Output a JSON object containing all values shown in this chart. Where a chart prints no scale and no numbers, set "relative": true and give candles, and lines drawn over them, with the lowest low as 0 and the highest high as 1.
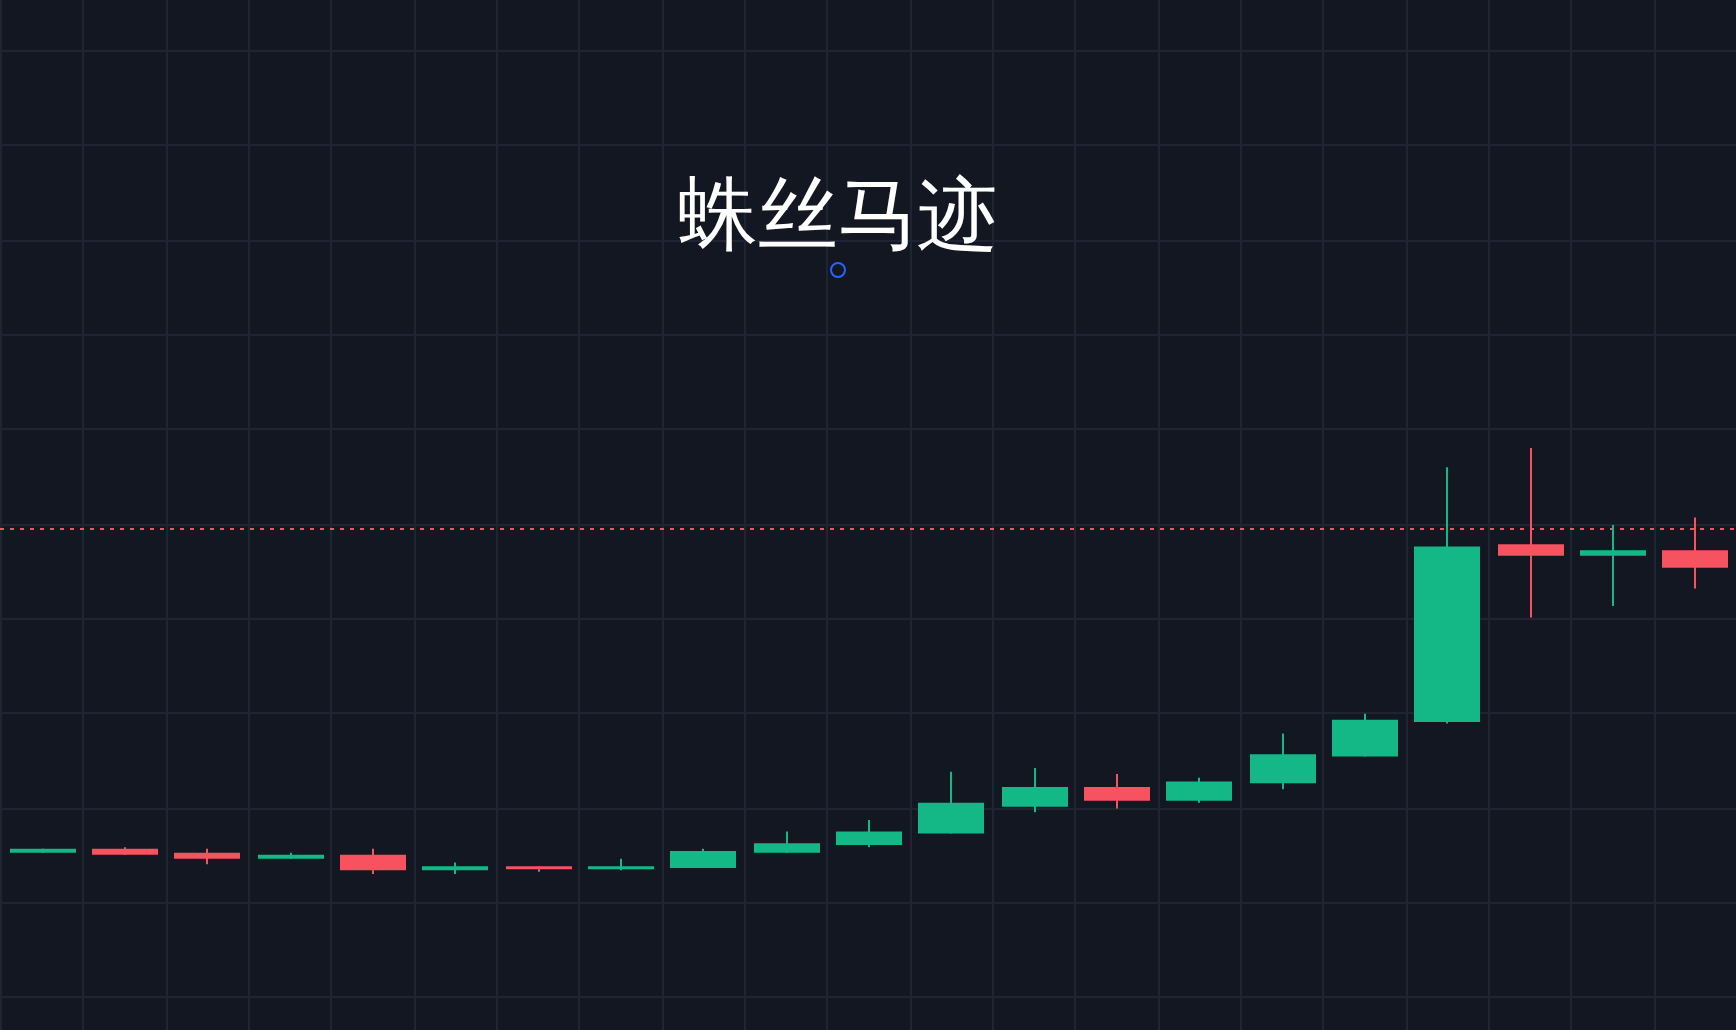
{
  "chart_data": {
    "type": "candlestick",
    "title": "蛛丝马迹",
    "relative": true,
    "grid": true,
    "legend": false,
    "tick_labels": false,
    "categories": [
      null,
      null,
      null,
      null,
      null,
      null,
      null,
      null,
      null,
      null,
      null,
      null,
      null,
      null,
      null,
      null,
      null,
      null,
      null,
      null,
      null
    ],
    "ohlc": [
      [
        0.05,
        0.059,
        0.05,
        0.059
      ],
      [
        0.059,
        0.063,
        0.045,
        0.045
      ],
      [
        0.05,
        0.059,
        0.023,
        0.036
      ],
      [
        0.036,
        0.05,
        0.036,
        0.045
      ],
      [
        0.045,
        0.059,
        0,
        0.009
      ],
      [
        0.009,
        0.027,
        0,
        0.018
      ],
      [
        0.018,
        0.018,
        0.005,
        0.014
      ],
      [
        0.014,
        0.036,
        0.009,
        0.018
      ],
      [
        0.014,
        0.059,
        0.014,
        0.054
      ],
      [
        0.05,
        0.1,
        0.05,
        0.072
      ],
      [
        0.068,
        0.127,
        0.063,
        0.1
      ],
      [
        0.095,
        0.24,
        0.095,
        0.167
      ],
      [
        0.158,
        0.249,
        0.145,
        0.204
      ],
      [
        0.204,
        0.235,
        0.154,
        0.172
      ],
      [
        0.172,
        0.226,
        0.167,
        0.217
      ],
      [
        0.213,
        0.33,
        0.199,
        0.281
      ],
      [
        0.276,
        0.376,
        0.276,
        0.362
      ],
      [
        0.357,
        0.955,
        0.353,
        0.769
      ],
      [
        0.774,
        1,
        0.602,
        0.747
      ],
      [
        0.747,
        0.819,
        0.629,
        0.76
      ],
      [
        0.76,
        0.837,
        0.67,
        0.719
      ]
    ],
    "colors": [
      "#13b886",
      "#f7525f",
      "#f7525f",
      "#13b886",
      "#f7525f",
      "#13b886",
      "#f7525f",
      "#13b886",
      "#13b886",
      "#13b886",
      "#13b886",
      "#13b886",
      "#13b886",
      "#f7525f",
      "#13b886",
      "#13b886",
      "#13b886",
      "#13b886",
      "#f7525f",
      "#13b886",
      "#f7525f"
    ],
    "ref_lines": [
      {
        "axis": "y",
        "value": 0.81,
        "color": "#f7525f",
        "line_style": "dotted"
      }
    ]
  }
}
